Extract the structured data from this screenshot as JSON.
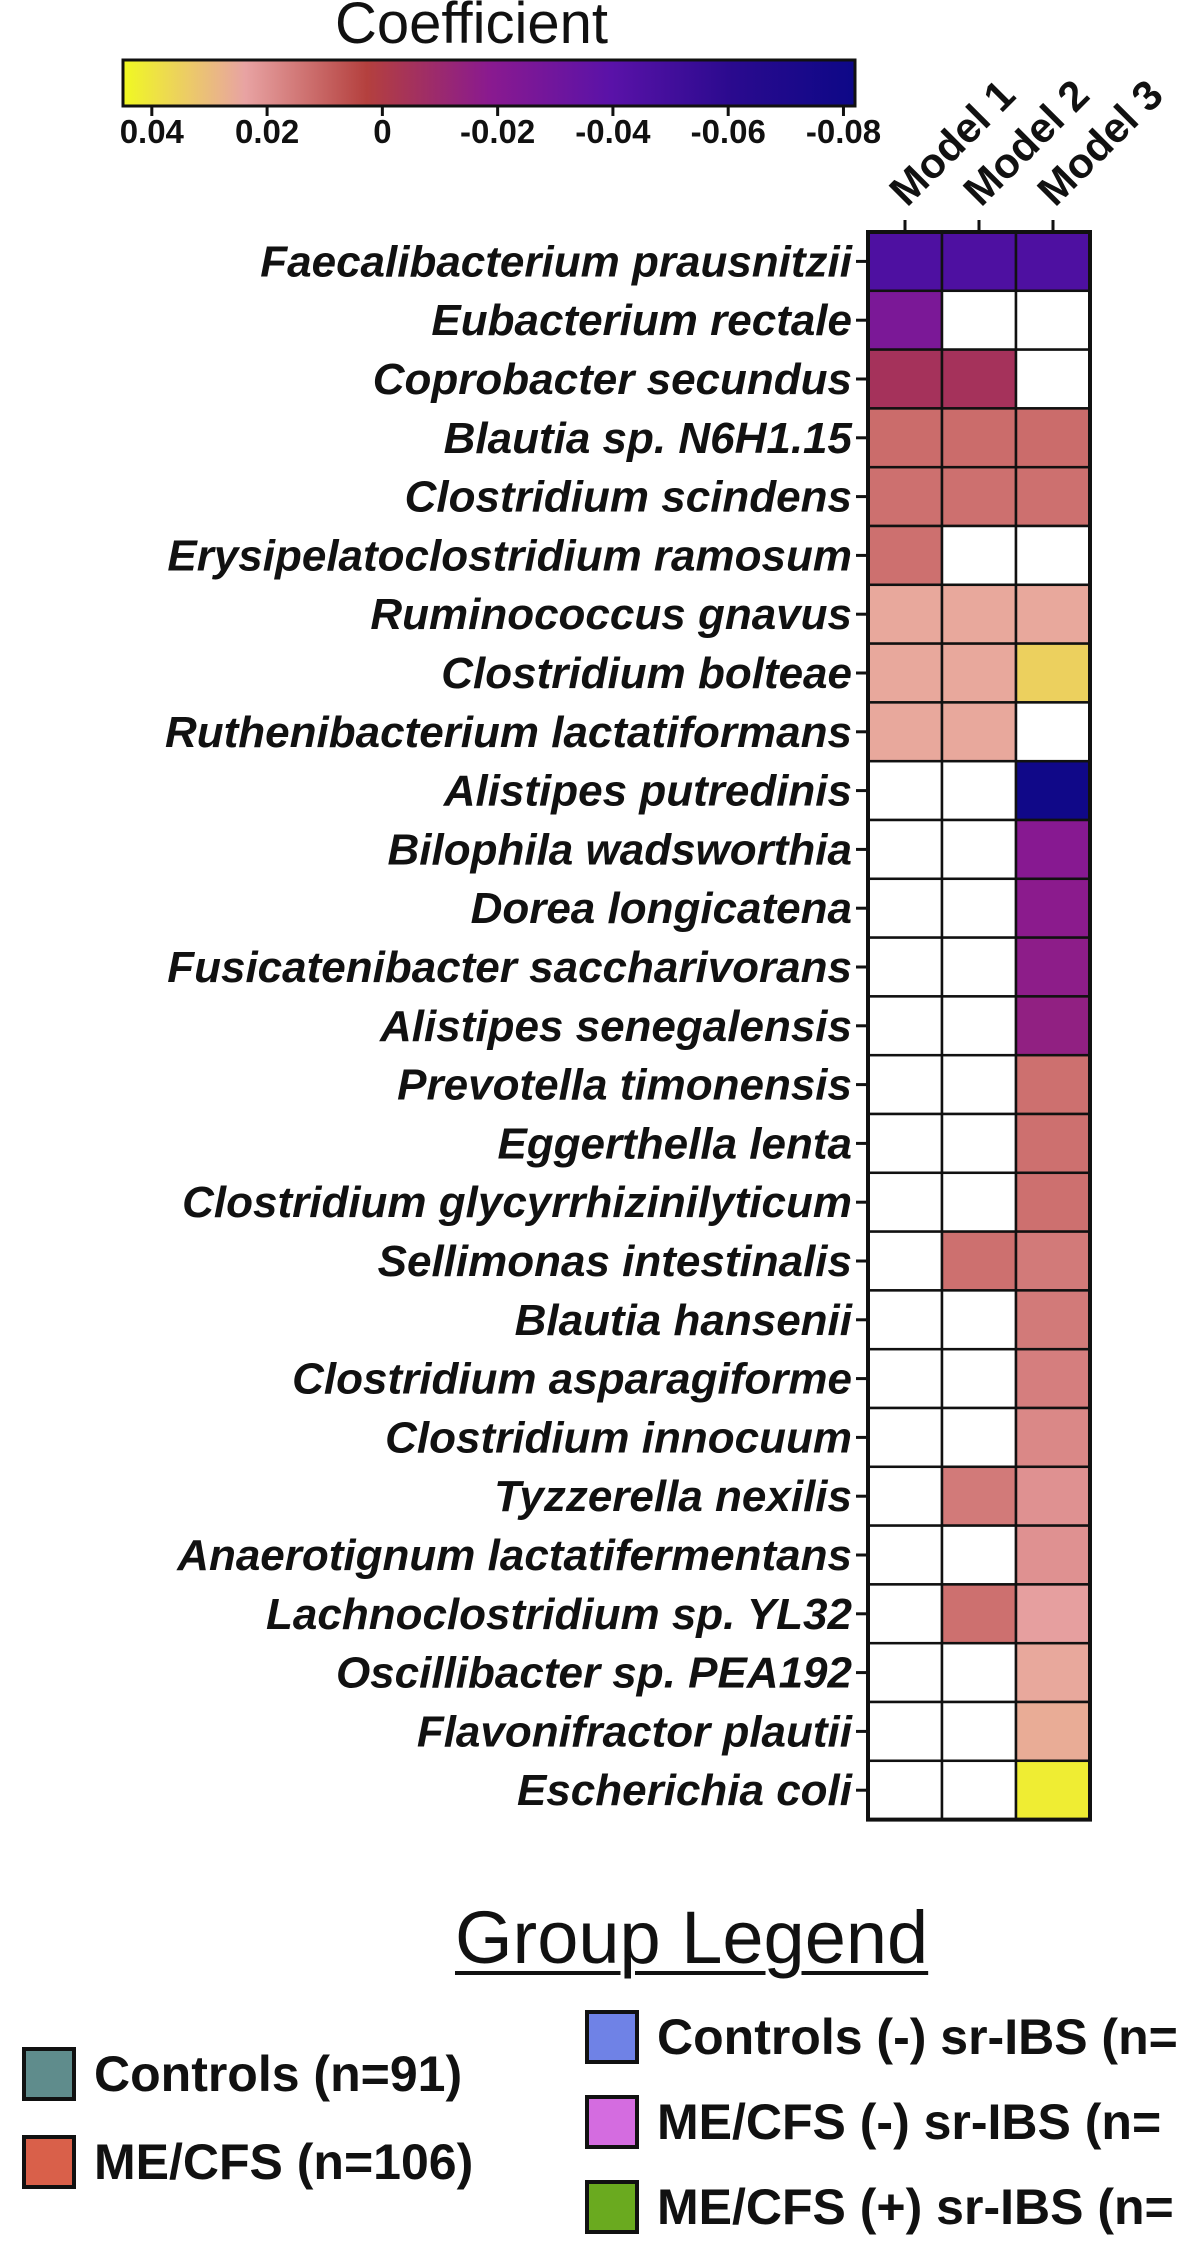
{
  "colorbar": {
    "title": "Coefficient",
    "ticks": [
      "0.04",
      "0.02",
      "0",
      "-0.02",
      "-0.04",
      "-0.06",
      "-0.08"
    ],
    "tick_values": [
      0.04,
      0.02,
      0,
      -0.02,
      -0.04,
      -0.06,
      -0.08
    ],
    "range": [
      0.045,
      -0.082
    ],
    "colormap": [
      "#f0f921",
      "#e8a3a3",
      "#b4403e",
      "#8a1a8f",
      "#5a12a8",
      "#2a0a8e",
      "#0d0887"
    ]
  },
  "chart_data": {
    "type": "heatmap",
    "title": "",
    "columns": [
      "Model 1",
      "Model 2",
      "Model 3"
    ],
    "rows": [
      "Faecalibacterium prausnitzii",
      "Eubacterium rectale",
      "Coprobacter secundus",
      "Blautia sp. N6H1.15",
      "Clostridium scindens",
      "Erysipelatoclostridium ramosum",
      "Ruminococcus gnavus",
      "Clostridium bolteae",
      "Ruthenibacterium lactatiformans",
      "Alistipes putredinis",
      "Bilophila wadsworthia",
      "Dorea longicatena",
      "Fusicatenibacter saccharivorans",
      "Alistipes senegalensis",
      "Prevotella timonensis",
      "Eggerthella lenta",
      "Clostridium glycyrrhizinilyticum",
      "Sellimonas intestinalis",
      "Blautia hansenii",
      "Clostridium asparagiforme",
      "Clostridium innocuum",
      "Tyzzerella nexilis",
      "Anaerotignum lactatifermentans",
      "Lachnoclostridium sp. YL32",
      "Oscillibacter sp. PEA192",
      "Flavonifractor plautii",
      "Escherichia coli"
    ],
    "values": [
      [
        -0.045,
        -0.045,
        -0.045
      ],
      [
        -0.025,
        null,
        null
      ],
      [
        -0.005,
        -0.005,
        null
      ],
      [
        0.012,
        0.012,
        0.012
      ],
      [
        0.013,
        0.013,
        0.013
      ],
      [
        0.013,
        null,
        null
      ],
      [
        0.025,
        0.025,
        0.025
      ],
      [
        0.025,
        0.025,
        0.035
      ],
      [
        0.025,
        0.025,
        null
      ],
      [
        null,
        null,
        -0.08
      ],
      [
        null,
        null,
        -0.02
      ],
      [
        null,
        null,
        -0.018
      ],
      [
        null,
        null,
        -0.017
      ],
      [
        null,
        null,
        -0.015
      ],
      [
        null,
        null,
        0.013
      ],
      [
        null,
        null,
        0.013
      ],
      [
        null,
        null,
        0.013
      ],
      [
        null,
        0.013,
        0.015
      ],
      [
        null,
        null,
        0.015
      ],
      [
        null,
        null,
        0.016
      ],
      [
        null,
        null,
        0.018
      ],
      [
        null,
        0.015,
        0.02
      ],
      [
        null,
        null,
        0.02
      ],
      [
        null,
        0.013,
        0.023
      ],
      [
        null,
        null,
        0.025
      ],
      [
        null,
        null,
        0.026
      ],
      [
        null,
        null,
        0.042
      ]
    ],
    "empty_color": "#ffffff"
  },
  "group_legend": {
    "title": "Group Legend",
    "items": [
      {
        "label": "Controls (n=91)",
        "color": "#5f8c8c"
      },
      {
        "label": "ME/CFS (n=106)",
        "color": "#d9604a"
      },
      {
        "label": "Controls (-) sr-IBS (n=",
        "color": "#6f82e6"
      },
      {
        "label": "ME/CFS (-) sr-IBS (n=",
        "color": "#d46ce0"
      },
      {
        "label": "ME/CFS (+) sr-IBS (n=",
        "color": "#6aaa1f"
      }
    ]
  }
}
